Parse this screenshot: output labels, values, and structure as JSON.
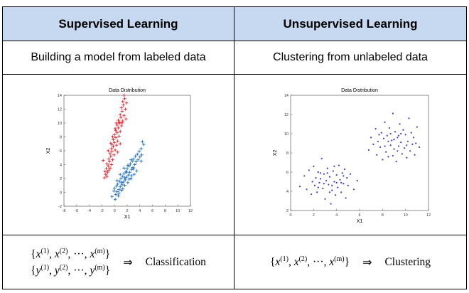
{
  "table": {
    "headers": [
      "Supervised Learning",
      "Unsupervised Learning"
    ],
    "descriptions": [
      "Building a model from labeled data",
      "Clustering from unlabeled data"
    ],
    "arrow_symbol": "⇒",
    "supervised_math": {
      "x_set": "{x(1), x(2), ···, x(m)}",
      "y_set": "{y(1), y(2), ···, y(m)}",
      "result": "Classification"
    },
    "unsupervised_math": {
      "x_set": "{x(1), x(2), ···, x(m)}",
      "result": "Clustering"
    }
  },
  "chart_data": [
    {
      "type": "scatter",
      "title": "Data Distribution",
      "xlabel": "X1",
      "ylabel": "X2",
      "xlim": [
        -8,
        12
      ],
      "ylim": [
        -2,
        14
      ],
      "xticks": [
        -8,
        -6,
        -4,
        -2,
        0,
        2,
        4,
        6,
        8,
        10,
        12
      ],
      "yticks": [
        -2,
        0,
        2,
        4,
        6,
        8,
        10,
        12,
        14
      ],
      "marker": "+",
      "grid": false,
      "series": [
        {
          "color": "#e8232b",
          "points": [
            [
              -1.6,
              2.1
            ],
            [
              -1.4,
              2.6
            ],
            [
              -1.2,
              2.3
            ],
            [
              -1.5,
              3.0
            ],
            [
              -1.1,
              2.9
            ],
            [
              -1.3,
              3.4
            ],
            [
              -0.9,
              3.2
            ],
            [
              -1.0,
              3.8
            ],
            [
              -0.7,
              3.5
            ],
            [
              -1.2,
              4.1
            ],
            [
              -0.8,
              4.4
            ],
            [
              -0.5,
              4.0
            ],
            [
              -0.9,
              4.8
            ],
            [
              -0.6,
              5.2
            ],
            [
              -0.3,
              4.7
            ],
            [
              -0.7,
              5.6
            ],
            [
              -0.4,
              5.9
            ],
            [
              -0.1,
              5.4
            ],
            [
              -0.5,
              6.3
            ],
            [
              -0.2,
              6.6
            ],
            [
              0.1,
              6.1
            ],
            [
              -0.4,
              6.9
            ],
            [
              0.0,
              7.2
            ],
            [
              0.3,
              6.8
            ],
            [
              -0.2,
              7.6
            ],
            [
              0.2,
              7.9
            ],
            [
              0.5,
              7.4
            ],
            [
              0.0,
              8.3
            ],
            [
              0.4,
              8.6
            ],
            [
              0.7,
              8.1
            ],
            [
              0.2,
              8.9
            ],
            [
              0.6,
              9.3
            ],
            [
              0.9,
              8.8
            ],
            [
              0.4,
              9.7
            ],
            [
              0.8,
              10.1
            ],
            [
              1.1,
              9.6
            ],
            [
              0.6,
              10.4
            ],
            [
              1.0,
              10.8
            ],
            [
              1.3,
              10.3
            ],
            [
              0.9,
              11.2
            ],
            [
              1.2,
              11.7
            ],
            [
              1.5,
              11.1
            ],
            [
              1.1,
              12.2
            ],
            [
              1.4,
              12.6
            ],
            [
              1.7,
              12.0
            ],
            [
              1.3,
              13.1
            ],
            [
              1.6,
              13.5
            ],
            [
              1.9,
              12.9
            ],
            [
              1.5,
              14.0
            ],
            [
              0.3,
              10.0
            ],
            [
              0.8,
              10.0
            ],
            [
              1.2,
              10.0
            ],
            [
              -0.6,
              7.1
            ],
            [
              0.5,
              5.8
            ],
            [
              -1.0,
              6.0
            ],
            [
              0.1,
              9.2
            ],
            [
              1.8,
              10.6
            ],
            [
              -1.8,
              4.6
            ],
            [
              0.9,
              7.0
            ],
            [
              -0.3,
              8.0
            ]
          ]
        },
        {
          "color": "#1f6fbf",
          "points": [
            [
              -0.4,
              -0.6
            ],
            [
              -0.1,
              0.2
            ],
            [
              0.2,
              -0.3
            ],
            [
              0.0,
              0.6
            ],
            [
              0.4,
              0.1
            ],
            [
              0.3,
              0.9
            ],
            [
              0.7,
              0.4
            ],
            [
              0.5,
              1.2
            ],
            [
              0.9,
              0.8
            ],
            [
              0.8,
              1.6
            ],
            [
              1.2,
              1.1
            ],
            [
              1.0,
              2.0
            ],
            [
              1.4,
              1.5
            ],
            [
              1.3,
              2.3
            ],
            [
              1.7,
              1.8
            ],
            [
              1.5,
              2.7
            ],
            [
              1.9,
              2.2
            ],
            [
              1.8,
              3.0
            ],
            [
              2.2,
              2.5
            ],
            [
              2.0,
              3.4
            ],
            [
              2.4,
              2.9
            ],
            [
              2.3,
              3.8
            ],
            [
              2.7,
              3.3
            ],
            [
              2.5,
              4.1
            ],
            [
              2.9,
              3.6
            ],
            [
              2.8,
              4.5
            ],
            [
              3.2,
              4.0
            ],
            [
              3.0,
              4.8
            ],
            [
              3.4,
              4.4
            ],
            [
              3.3,
              5.2
            ],
            [
              3.7,
              4.7
            ],
            [
              3.6,
              5.5
            ],
            [
              4.0,
              5.1
            ],
            [
              3.9,
              5.9
            ],
            [
              4.3,
              5.4
            ],
            [
              4.2,
              6.3
            ],
            [
              4.6,
              6.9
            ],
            [
              4.4,
              7.3
            ],
            [
              0.1,
              -1.0
            ],
            [
              0.6,
              -0.5
            ],
            [
              1.1,
              0.3
            ],
            [
              1.6,
              1.0
            ],
            [
              2.1,
              1.4
            ],
            [
              2.6,
              2.0
            ],
            [
              3.1,
              2.6
            ],
            [
              0.9,
              2.6
            ],
            [
              1.5,
              3.5
            ],
            [
              2.6,
              4.7
            ],
            [
              3.5,
              3.1
            ],
            [
              4.2,
              4.5
            ],
            [
              1.1,
              1.4
            ],
            [
              1.9,
              2.9
            ],
            [
              2.7,
              2.4
            ],
            [
              0.4,
              1.7
            ],
            [
              1.3,
              0.5
            ],
            [
              2.3,
              1.9
            ],
            [
              3.0,
              3.4
            ],
            [
              1.6,
              2.1
            ],
            [
              2.1,
              3.9
            ],
            [
              0.7,
              -0.1
            ]
          ]
        }
      ]
    },
    {
      "type": "scatter",
      "title": "Data Distribution",
      "xlabel": "X1",
      "ylabel": "X2",
      "xlim": [
        0,
        12
      ],
      "ylim": [
        2,
        14
      ],
      "xticks": [
        0,
        2,
        4,
        6,
        8,
        10,
        12
      ],
      "yticks": [
        2,
        4,
        6,
        8,
        10,
        12,
        14
      ],
      "marker": ".",
      "grid": false,
      "series": [
        {
          "color": "#3b3bdc",
          "points": [
            [
              0.8,
              4.5
            ],
            [
              1.2,
              5.6
            ],
            [
              1.4,
              4.2
            ],
            [
              1.6,
              6.2
            ],
            [
              1.8,
              3.7
            ],
            [
              1.9,
              5.0
            ],
            [
              2.0,
              6.6
            ],
            [
              2.1,
              4.6
            ],
            [
              2.2,
              5.4
            ],
            [
              2.3,
              3.9
            ],
            [
              2.4,
              6.0
            ],
            [
              2.5,
              4.9
            ],
            [
              2.6,
              5.3
            ],
            [
              2.7,
              7.4
            ],
            [
              2.8,
              4.3
            ],
            [
              2.9,
              5.8
            ],
            [
              3.0,
              3.2
            ],
            [
              3.1,
              5.1
            ],
            [
              3.2,
              6.4
            ],
            [
              3.3,
              4.7
            ],
            [
              3.4,
              5.5
            ],
            [
              3.5,
              2.7
            ],
            [
              3.6,
              4.1
            ],
            [
              3.7,
              6.1
            ],
            [
              3.8,
              5.0
            ],
            [
              3.9,
              3.6
            ],
            [
              4.0,
              5.7
            ],
            [
              4.1,
              4.4
            ],
            [
              4.2,
              6.7
            ],
            [
              4.3,
              5.2
            ],
            [
              4.4,
              3.9
            ],
            [
              4.5,
              5.9
            ],
            [
              4.6,
              4.8
            ],
            [
              4.7,
              6.3
            ],
            [
              4.8,
              3.3
            ],
            [
              4.9,
              5.4
            ],
            [
              5.0,
              4.6
            ],
            [
              5.2,
              5.8
            ],
            [
              5.5,
              4.2
            ],
            [
              5.8,
              5.1
            ],
            [
              2.6,
              5.9
            ],
            [
              3.2,
              5.9
            ],
            [
              4.0,
              4.9
            ],
            [
              3.6,
              4.6
            ],
            [
              2.9,
              4.8
            ],
            [
              3.8,
              6.6
            ],
            [
              4.4,
              4.9
            ],
            [
              2.4,
              4.4
            ],
            [
              3.4,
              3.9
            ],
            [
              4.6,
              5.6
            ],
            [
              6.8,
              8.3
            ],
            [
              7.0,
              9.6
            ],
            [
              7.2,
              8.9
            ],
            [
              7.4,
              10.5
            ],
            [
              7.5,
              7.8
            ],
            [
              7.6,
              9.2
            ],
            [
              7.8,
              8.6
            ],
            [
              7.9,
              10.1
            ],
            [
              8.0,
              7.3
            ],
            [
              8.1,
              9.5
            ],
            [
              8.2,
              11.2
            ],
            [
              8.3,
              8.1
            ],
            [
              8.4,
              9.8
            ],
            [
              8.5,
              7.6
            ],
            [
              8.6,
              10.6
            ],
            [
              8.7,
              8.8
            ],
            [
              8.8,
              9.3
            ],
            [
              8.9,
              12.1
            ],
            [
              9.0,
              8.4
            ],
            [
              9.1,
              10.2
            ],
            [
              9.2,
              7.1
            ],
            [
              9.3,
              9.6
            ],
            [
              9.4,
              8.7
            ],
            [
              9.5,
              11.0
            ],
            [
              9.6,
              9.1
            ],
            [
              9.7,
              7.9
            ],
            [
              9.8,
              10.4
            ],
            [
              9.9,
              8.5
            ],
            [
              10.0,
              9.9
            ],
            [
              10.1,
              7.5
            ],
            [
              10.2,
              9.2
            ],
            [
              10.3,
              11.6
            ],
            [
              10.4,
              8.2
            ],
            [
              10.5,
              10.1
            ],
            [
              10.6,
              8.9
            ],
            [
              10.7,
              9.6
            ],
            [
              10.8,
              7.8
            ],
            [
              10.9,
              9.0
            ],
            [
              11.0,
              10.7
            ],
            [
              11.2,
              8.6
            ],
            [
              8.5,
              9.2
            ],
            [
              9.0,
              9.4
            ],
            [
              8.7,
              10.0
            ],
            [
              9.3,
              8.2
            ],
            [
              8.2,
              8.7
            ],
            [
              9.6,
              10.0
            ],
            [
              8.9,
              7.7
            ],
            [
              10.1,
              8.8
            ],
            [
              7.7,
              9.9
            ],
            [
              9.4,
              9.8
            ]
          ]
        }
      ]
    }
  ]
}
